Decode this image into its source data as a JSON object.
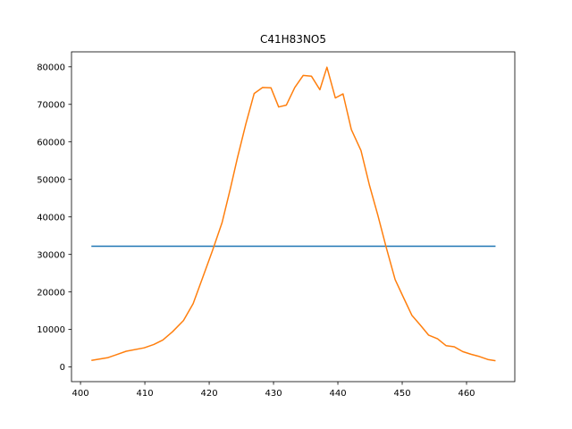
{
  "chart_data": {
    "type": "line",
    "title": "C41H83NO5",
    "xlabel": "",
    "ylabel": "",
    "xlim": [
      398.6,
      467.5
    ],
    "ylim": [
      -3900,
      84000
    ],
    "xticks": [
      400,
      410,
      420,
      430,
      440,
      450,
      460
    ],
    "yticks": [
      0,
      10000,
      20000,
      30000,
      40000,
      50000,
      60000,
      70000,
      80000
    ],
    "grid": false,
    "legend": "none",
    "series": [
      {
        "color": "#1f77b4",
        "x": [
          401.8,
          464.4
        ],
        "y": [
          32200,
          32200
        ]
      },
      {
        "color": "#ff7f0e",
        "x": [
          401.8,
          404.3,
          407.1,
          409.9,
          411.4,
          412.8,
          414.3,
          416.0,
          417.5,
          419.0,
          420.5,
          422.0,
          423.3,
          424.4,
          425.7,
          427.0,
          428.3,
          429.6,
          430.8,
          432.0,
          433.3,
          434.6,
          435.9,
          437.2,
          438.3,
          439.6,
          440.8,
          442.1,
          443.6,
          444.9,
          446.2,
          447.5,
          448.9,
          450.2,
          451.5,
          452.8,
          454.1,
          455.5,
          456.8,
          458.1,
          459.4,
          460.7,
          462.0,
          463.3,
          464.4
        ],
        "y": [
          1800,
          2500,
          4200,
          5100,
          6000,
          7200,
          9400,
          12400,
          16900,
          23900,
          31000,
          38500,
          47600,
          55800,
          64800,
          72900,
          74500,
          74400,
          69300,
          69800,
          74500,
          77700,
          77500,
          73900,
          79900,
          71700,
          72800,
          63300,
          57700,
          48500,
          40500,
          32000,
          23300,
          18500,
          13800,
          11200,
          8500,
          7500,
          5700,
          5400,
          4100,
          3400,
          2800,
          2000,
          1700
        ]
      }
    ]
  }
}
